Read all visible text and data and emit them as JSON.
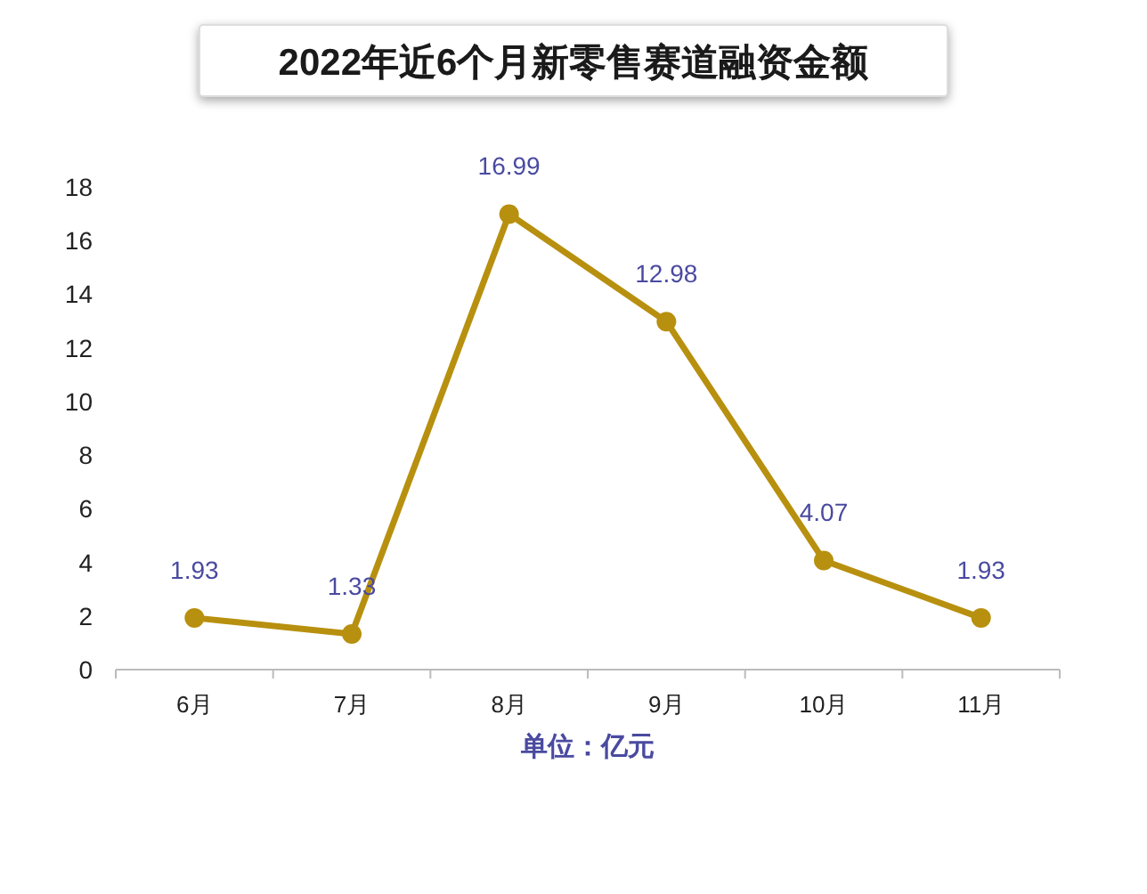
{
  "chart_data": {
    "type": "line",
    "title": "2022年近6个月新零售赛道融资金额",
    "xlabel": "单位：亿元",
    "categories": [
      "6月",
      "7月",
      "8月",
      "9月",
      "10月",
      "11月"
    ],
    "series": [
      {
        "color": "#b8900f",
        "values": [
          1.93,
          1.33,
          16.99,
          12.98,
          4.07,
          1.93
        ]
      }
    ],
    "ylim": [
      0,
      18
    ],
    "yticks": [
      0,
      2,
      4,
      6,
      8,
      10,
      12,
      14,
      16,
      18
    ],
    "marker": "circle",
    "line_style": "solid",
    "data_labels": true
  }
}
